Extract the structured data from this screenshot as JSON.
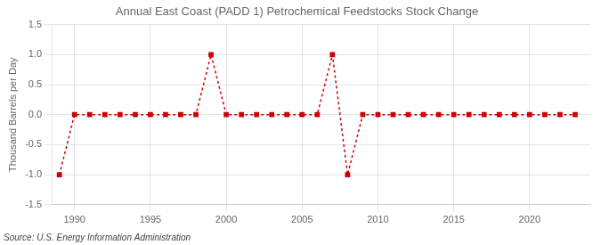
{
  "chart_data": {
    "type": "line",
    "title": "Annual East Coast (PADD 1) Petrochemical Feedstocks Stock Change",
    "ylabel": "Thousand Barrels per Day",
    "source": "Source: U.S. Energy Information Administration",
    "x": [
      1989,
      1990,
      1991,
      1992,
      1993,
      1994,
      1995,
      1996,
      1997,
      1998,
      1999,
      2000,
      2001,
      2002,
      2003,
      2004,
      2005,
      2006,
      2007,
      2008,
      2009,
      2010,
      2011,
      2012,
      2013,
      2014,
      2015,
      2016,
      2017,
      2018,
      2019,
      2020,
      2021,
      2022,
      2023
    ],
    "values": [
      -1.0,
      0.0,
      0.0,
      0.0,
      0.0,
      0.0,
      0.0,
      0.0,
      0.0,
      0.0,
      1.0,
      0.0,
      0.0,
      0.0,
      0.0,
      0.0,
      0.0,
      0.0,
      1.0,
      -1.0,
      0.0,
      0.0,
      0.0,
      0.0,
      0.0,
      0.0,
      0.0,
      0.0,
      0.0,
      0.0,
      0.0,
      0.0,
      0.0,
      0.0,
      0.0
    ],
    "color": "#cc0000",
    "marker": "square",
    "line_style": "dashed",
    "xlim": [
      1988.5,
      2024.0
    ],
    "xticks": [
      1990,
      1995,
      2000,
      2005,
      2010,
      2015,
      2020
    ],
    "ylim": [
      -1.5,
      1.5
    ],
    "yticks": [
      -1.5,
      {
        "value": -1.0,
        "label": "-1.0"
      },
      -0.5,
      {
        "value": 0.0,
        "label": "0.0"
      },
      0.5,
      {
        "value": 1.0,
        "label": "1.0"
      },
      1.5
    ],
    "grid": true
  }
}
